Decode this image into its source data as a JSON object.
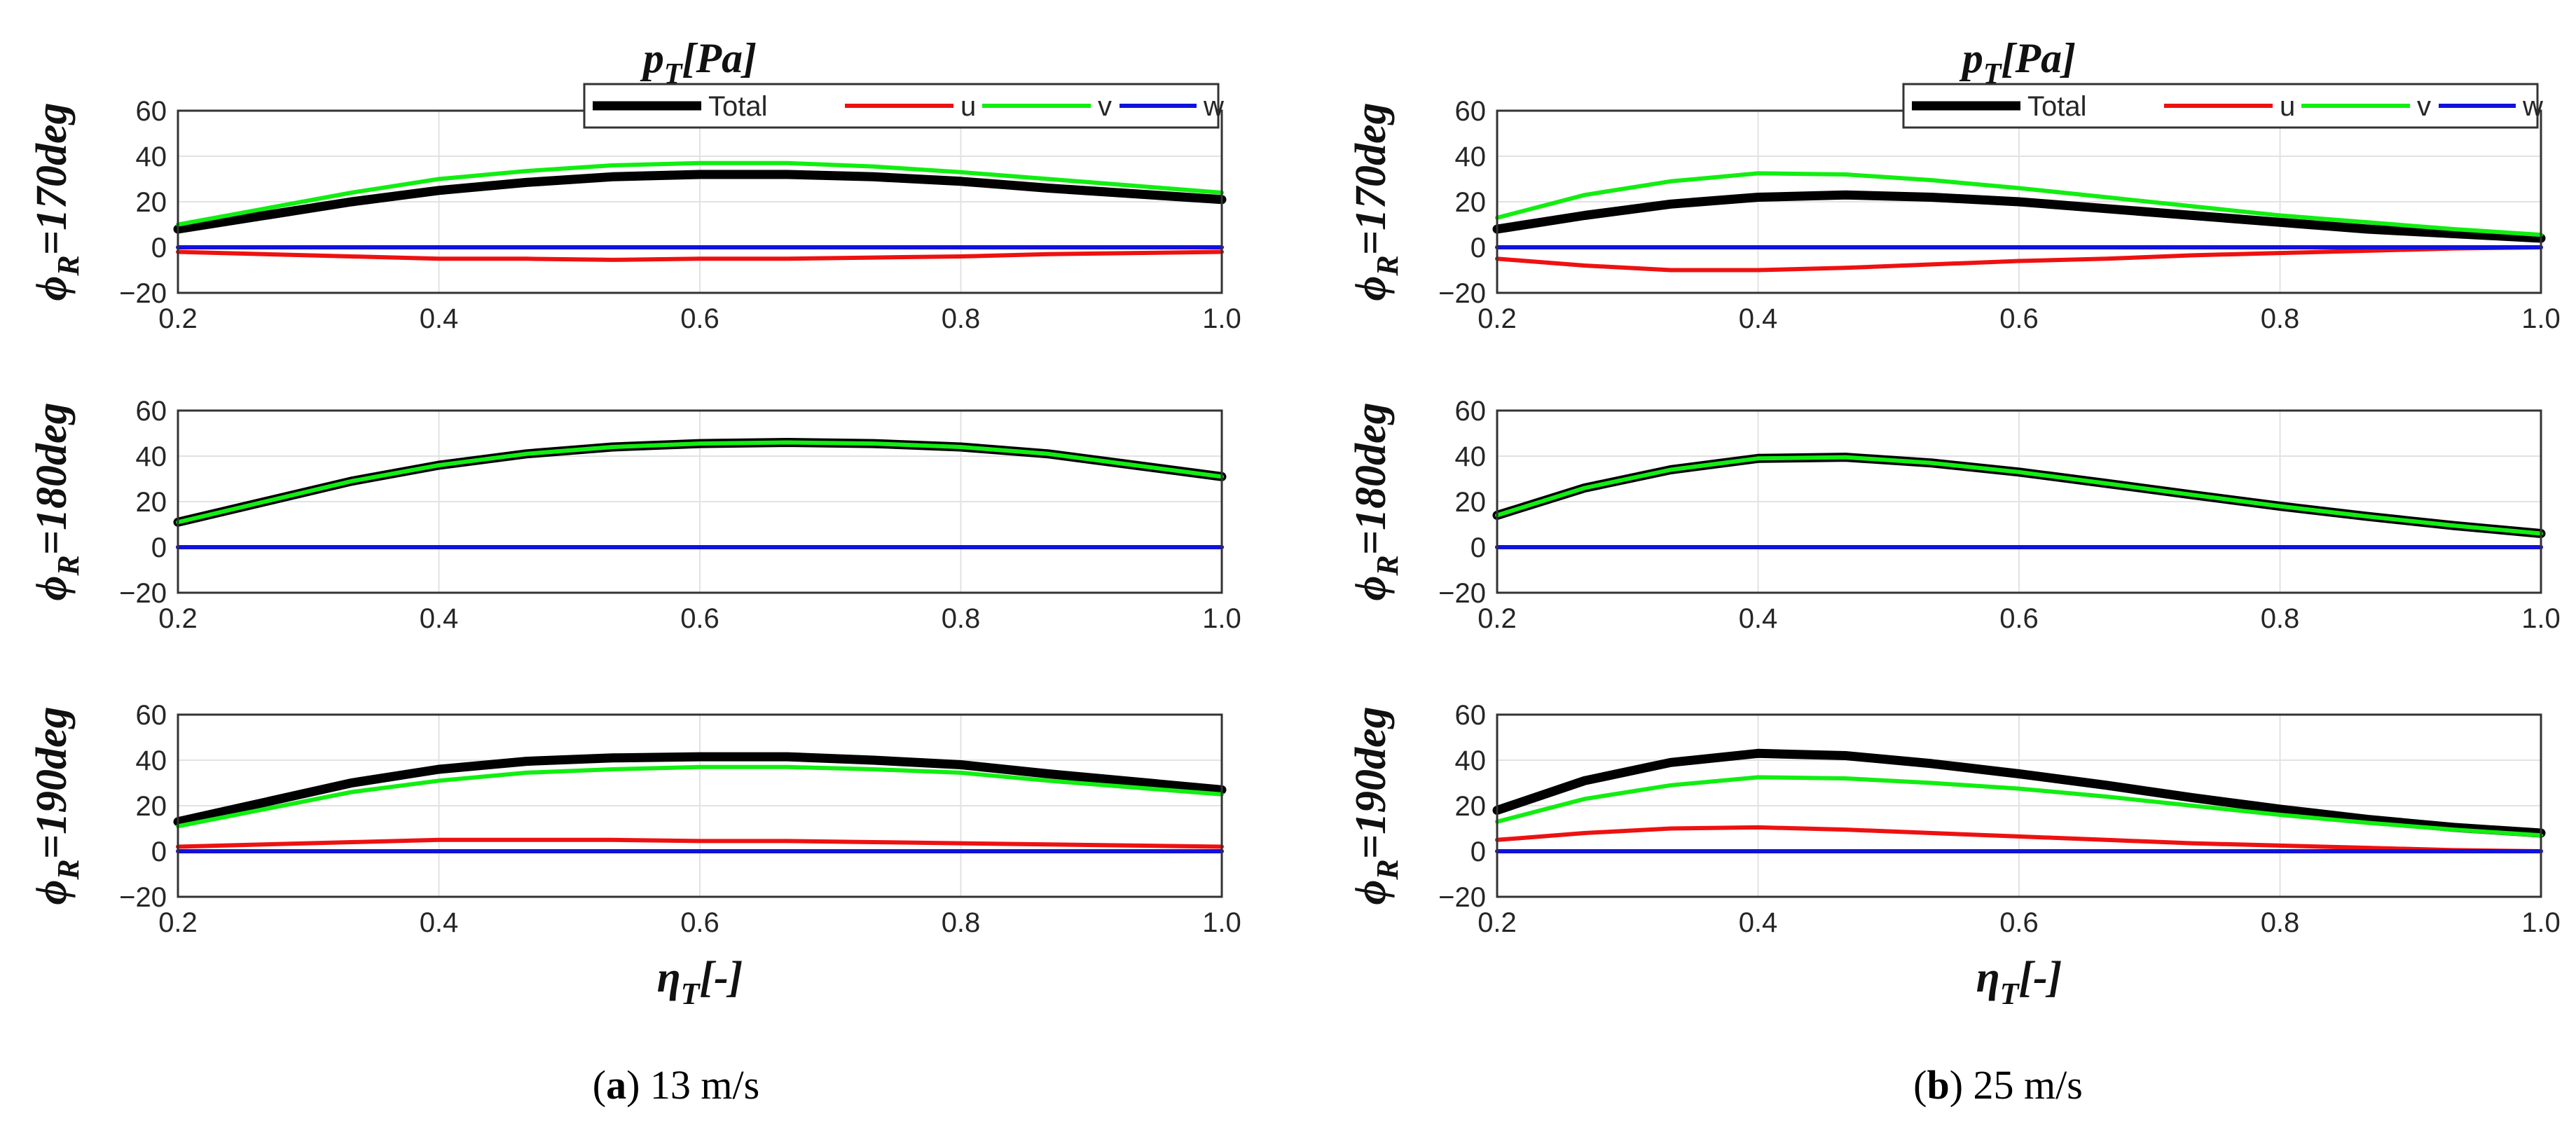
{
  "colors": {
    "total": "#000000",
    "u": "#ee1111",
    "v": "#11ee11",
    "w": "#1111dd",
    "grid": "#e2e2e2",
    "axis": "#333333"
  },
  "chart_data": [
    {
      "id": "a1",
      "type": "line",
      "column": "a",
      "row": 0,
      "title": "p_T[Pa]",
      "ylabel": "ϕ_R=170deg",
      "xlabel": "",
      "xlim": [
        0.2,
        1.0
      ],
      "ylim": [
        -20,
        60
      ],
      "xticks": [
        "0.2",
        "0.4",
        "0.6",
        "0.8",
        "1.0"
      ],
      "yticks": [
        "60",
        "40",
        "20",
        "0",
        "−20"
      ],
      "grid": true,
      "legend_position": "top-right",
      "x": [
        0.2,
        0.333,
        0.4,
        0.467,
        0.533,
        0.6,
        0.667,
        0.733,
        0.8,
        0.867,
        1.0
      ],
      "series": [
        {
          "name": "Total",
          "values": [
            8,
            20,
            25,
            28.5,
            31,
            32,
            32,
            31,
            29,
            26,
            21
          ]
        },
        {
          "name": "u",
          "values": [
            -2,
            -4,
            -5,
            -5,
            -5.5,
            -5,
            -5,
            -4.5,
            -4,
            -3,
            -2
          ]
        },
        {
          "name": "v",
          "values": [
            10,
            24,
            30,
            33.5,
            36,
            37,
            37,
            35.5,
            33,
            30,
            24
          ]
        },
        {
          "name": "w",
          "values": [
            0,
            0,
            0,
            0,
            0,
            0,
            0,
            0,
            0,
            0,
            0
          ]
        }
      ]
    },
    {
      "id": "a2",
      "type": "line",
      "column": "a",
      "row": 1,
      "title": "",
      "ylabel": "ϕ_R=180deg",
      "xlabel": "",
      "xlim": [
        0.2,
        1.0
      ],
      "ylim": [
        -20,
        60
      ],
      "xticks": [
        "0.2",
        "0.4",
        "0.6",
        "0.8",
        "1.0"
      ],
      "yticks": [
        "60",
        "40",
        "20",
        "0",
        "−20"
      ],
      "grid": true,
      "x": [
        0.2,
        0.333,
        0.4,
        0.467,
        0.533,
        0.6,
        0.667,
        0.733,
        0.8,
        0.867,
        1.0
      ],
      "series": [
        {
          "name": "Total",
          "values": [
            11,
            29,
            36,
            41,
            44,
            45.5,
            46,
            45.5,
            44,
            41,
            31
          ]
        },
        {
          "name": "u",
          "values": [
            0,
            0,
            0,
            0,
            0,
            0,
            0,
            0,
            0,
            0,
            0
          ]
        },
        {
          "name": "v",
          "values": [
            11,
            29,
            36,
            41,
            44,
            45.5,
            46,
            45.5,
            44,
            41,
            31
          ]
        },
        {
          "name": "w",
          "values": [
            0,
            0,
            0,
            0,
            0,
            0,
            0,
            0,
            0,
            0,
            0
          ]
        }
      ]
    },
    {
      "id": "a3",
      "type": "line",
      "column": "a",
      "row": 2,
      "title": "",
      "ylabel": "ϕ_R=190deg",
      "xlabel": "η_T[-]",
      "xlim": [
        0.2,
        1.0
      ],
      "ylim": [
        -20,
        60
      ],
      "xticks": [
        "0.2",
        "0.4",
        "0.6",
        "0.8",
        "1.0"
      ],
      "yticks": [
        "60",
        "40",
        "20",
        "0",
        "−20"
      ],
      "grid": true,
      "x": [
        0.2,
        0.333,
        0.4,
        0.467,
        0.533,
        0.6,
        0.667,
        0.733,
        0.8,
        0.867,
        1.0
      ],
      "series": [
        {
          "name": "Total",
          "values": [
            13,
            30,
            36,
            39.5,
            41,
            41.5,
            41.5,
            40,
            38,
            34,
            27
          ]
        },
        {
          "name": "u",
          "values": [
            2,
            4,
            5,
            5,
            5,
            4.5,
            4.5,
            4,
            3.5,
            3,
            2
          ]
        },
        {
          "name": "v",
          "values": [
            11,
            26,
            31,
            34.5,
            36,
            37,
            37,
            36,
            34.5,
            31,
            25
          ]
        },
        {
          "name": "w",
          "values": [
            0,
            0,
            0,
            0,
            0,
            0,
            0,
            0,
            0,
            0,
            0
          ]
        }
      ]
    },
    {
      "id": "b1",
      "type": "line",
      "column": "b",
      "row": 0,
      "title": "p_T[Pa]",
      "ylabel": "ϕ_R=170deg",
      "xlabel": "",
      "xlim": [
        0.2,
        1.0
      ],
      "ylim": [
        -20,
        60
      ],
      "xticks": [
        "0.2",
        "0.4",
        "0.6",
        "0.8",
        "1.0"
      ],
      "yticks": [
        "60",
        "40",
        "20",
        "0",
        "−20"
      ],
      "grid": true,
      "legend_position": "top-right",
      "x": [
        0.2,
        0.267,
        0.333,
        0.4,
        0.467,
        0.533,
        0.6,
        0.667,
        0.733,
        0.8,
        0.867,
        0.933,
        1.0
      ],
      "series": [
        {
          "name": "Total",
          "values": [
            8,
            14,
            19,
            22,
            23,
            22,
            20,
            17,
            14,
            11,
            8,
            6,
            4
          ]
        },
        {
          "name": "u",
          "values": [
            -5,
            -8,
            -10,
            -10,
            -9,
            -7.5,
            -6,
            -5,
            -3.5,
            -2.5,
            -1.5,
            -0.5,
            0
          ]
        },
        {
          "name": "v",
          "values": [
            13,
            23,
            29,
            32.5,
            32,
            29.5,
            26,
            22,
            18,
            14,
            11,
            8,
            5.5
          ]
        },
        {
          "name": "w",
          "values": [
            0,
            0,
            0,
            0,
            0,
            0,
            0,
            0,
            0,
            0,
            0,
            0,
            0
          ]
        }
      ]
    },
    {
      "id": "b2",
      "type": "line",
      "column": "b",
      "row": 1,
      "title": "",
      "ylabel": "ϕ_R=180deg",
      "xlabel": "",
      "xlim": [
        0.2,
        1.0
      ],
      "ylim": [
        -20,
        60
      ],
      "xticks": [
        "0.2",
        "0.4",
        "0.6",
        "0.8",
        "1.0"
      ],
      "yticks": [
        "60",
        "40",
        "20",
        "0",
        "−20"
      ],
      "grid": true,
      "x": [
        0.2,
        0.267,
        0.333,
        0.4,
        0.467,
        0.533,
        0.6,
        0.667,
        0.733,
        0.8,
        0.867,
        0.933,
        1.0
      ],
      "series": [
        {
          "name": "Total",
          "values": [
            14,
            26,
            34,
            39,
            39.5,
            37,
            33,
            28,
            23,
            18,
            13.5,
            9.5,
            6
          ]
        },
        {
          "name": "u",
          "values": [
            0,
            0,
            0,
            0,
            0,
            0,
            0,
            0,
            0,
            0,
            0,
            0,
            0
          ]
        },
        {
          "name": "v",
          "values": [
            14,
            26,
            34,
            39,
            39.5,
            37,
            33,
            28,
            23,
            18,
            13.5,
            9.5,
            6
          ]
        },
        {
          "name": "w",
          "values": [
            0,
            0,
            0,
            0,
            0,
            0,
            0,
            0,
            0,
            0,
            0,
            0,
            0
          ]
        }
      ]
    },
    {
      "id": "b3",
      "type": "line",
      "column": "b",
      "row": 2,
      "title": "",
      "ylabel": "ϕ_R=190deg",
      "xlabel": "η_T[-]",
      "xlim": [
        0.2,
        1.0
      ],
      "ylim": [
        -20,
        60
      ],
      "xticks": [
        "0.2",
        "0.4",
        "0.6",
        "0.8",
        "1.0"
      ],
      "yticks": [
        "60",
        "40",
        "20",
        "0",
        "−20"
      ],
      "grid": true,
      "x": [
        0.2,
        0.267,
        0.333,
        0.4,
        0.467,
        0.533,
        0.6,
        0.667,
        0.733,
        0.8,
        0.867,
        0.933,
        1.0
      ],
      "series": [
        {
          "name": "Total",
          "values": [
            18,
            31,
            39,
            43,
            42,
            38.5,
            34,
            29,
            23.5,
            18.5,
            14,
            10.5,
            8
          ]
        },
        {
          "name": "u",
          "values": [
            5,
            8,
            10,
            10.5,
            9.5,
            8,
            6.5,
            5,
            3.5,
            2.5,
            1.5,
            0.5,
            0
          ]
        },
        {
          "name": "v",
          "values": [
            13,
            23,
            29,
            32.5,
            32,
            30,
            27.5,
            24,
            20,
            16,
            12.5,
            9.5,
            7
          ]
        },
        {
          "name": "w",
          "values": [
            0,
            0,
            0,
            0,
            0,
            0,
            0,
            0,
            0,
            0,
            0,
            0,
            0
          ]
        }
      ]
    }
  ],
  "captions": {
    "a": {
      "letter": "a",
      "text": " 13 m/s"
    },
    "b": {
      "letter": "b",
      "text": " 25 m/s"
    }
  }
}
